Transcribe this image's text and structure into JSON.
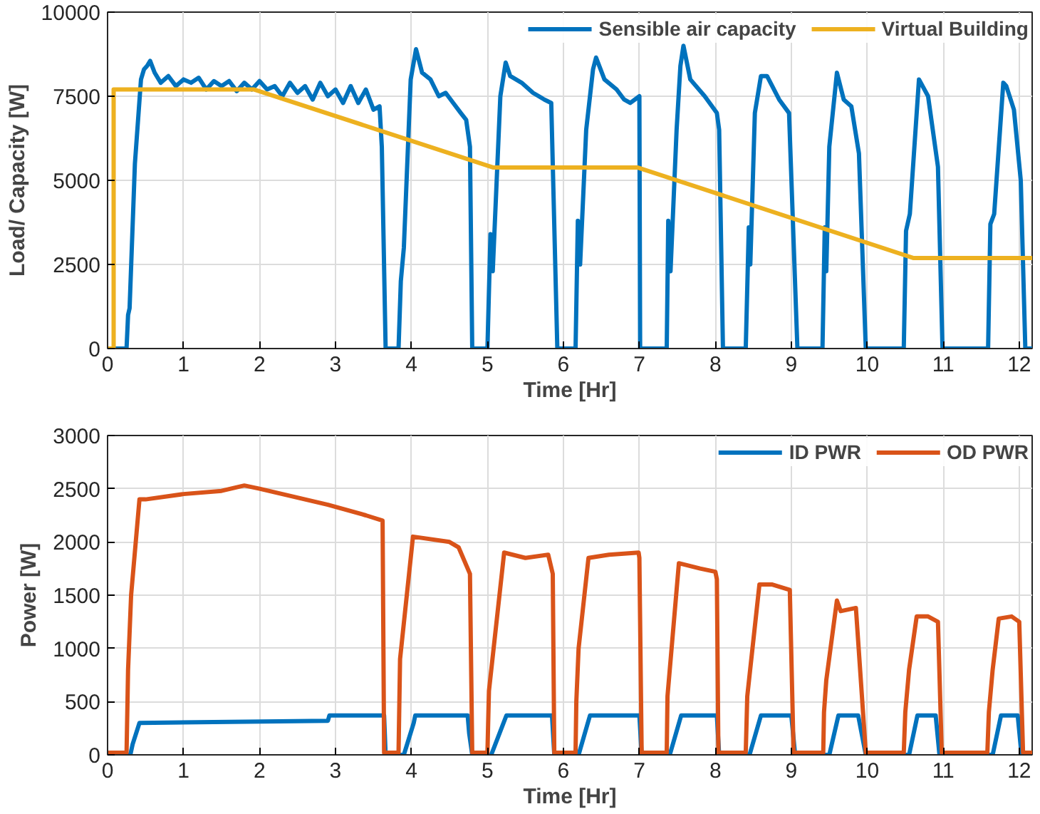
{
  "chart_data": [
    {
      "type": "line",
      "xlabel": "Time [Hr]",
      "ylabel": "Load/ Capacity [W]",
      "xlim": [
        0,
        12.17
      ],
      "ylim": [
        0,
        10000
      ],
      "xticks": [
        0,
        1,
        2,
        3,
        4,
        5,
        6,
        7,
        8,
        9,
        10,
        11,
        12
      ],
      "yticks": [
        0,
        2500,
        5000,
        7500,
        10000
      ],
      "grid": true,
      "legend": "top right",
      "line_style": "solid",
      "series": [
        {
          "name": "Sensible air capacity",
          "color": "#0072bd",
          "x": [
            0,
            0.25,
            0.27,
            0.29,
            0.36,
            0.44,
            0.48,
            0.52,
            0.56,
            0.62,
            0.7,
            0.8,
            0.9,
            1.0,
            1.1,
            1.2,
            1.3,
            1.4,
            1.5,
            1.6,
            1.7,
            1.8,
            1.9,
            2.0,
            2.1,
            2.2,
            2.3,
            2.4,
            2.5,
            2.6,
            2.7,
            2.8,
            2.9,
            3.0,
            3.1,
            3.2,
            3.3,
            3.4,
            3.5,
            3.58,
            3.61,
            3.66,
            3.83,
            3.86,
            3.9,
            3.99,
            4.06,
            4.14,
            4.25,
            4.36,
            4.45,
            4.55,
            4.65,
            4.72,
            4.77,
            4.8,
            5.0,
            5.04,
            5.07,
            5.17,
            5.24,
            5.3,
            5.45,
            5.6,
            5.75,
            5.84,
            5.92,
            6.16,
            6.19,
            6.22,
            6.3,
            6.39,
            6.43,
            6.54,
            6.7,
            6.8,
            6.88,
            7.0,
            7.01,
            7.07,
            7.36,
            7.38,
            7.41,
            7.49,
            7.54,
            7.58,
            7.67,
            7.86,
            8.02,
            8.05,
            8.1,
            8.4,
            8.44,
            8.46,
            8.52,
            8.6,
            8.68,
            8.84,
            8.97,
            9.08,
            9.41,
            9.44,
            9.46,
            9.5,
            9.6,
            9.69,
            9.79,
            9.89,
            9.98,
            10.48,
            10.51,
            10.56,
            10.68,
            10.8,
            10.93,
            10.99,
            11.59,
            11.62,
            11.67,
            11.79,
            11.83,
            11.93,
            12.02,
            12.08,
            12.17
          ],
          "values": [
            0,
            0,
            1000,
            1200,
            5500,
            8000,
            8300,
            8400,
            8550,
            8200,
            7900,
            8100,
            7800,
            8000,
            7900,
            8050,
            7700,
            7950,
            7800,
            7950,
            7650,
            7900,
            7700,
            7950,
            7700,
            7800,
            7500,
            7900,
            7600,
            7800,
            7400,
            7900,
            7500,
            7700,
            7300,
            7800,
            7300,
            7700,
            7100,
            7200,
            6000,
            0,
            0,
            2000,
            3000,
            8000,
            8900,
            8200,
            8000,
            7500,
            7600,
            7300,
            7000,
            6800,
            6000,
            0,
            0,
            3400,
            2300,
            7500,
            8500,
            8100,
            7900,
            7600,
            7400,
            7300,
            0,
            0,
            3800,
            2500,
            6500,
            8300,
            8650,
            8000,
            7700,
            7400,
            7300,
            7500,
            0,
            0,
            0,
            3800,
            2300,
            6500,
            8400,
            9000,
            8000,
            7500,
            7000,
            6500,
            0,
            0,
            3600,
            2500,
            7000,
            8100,
            8100,
            7400,
            7000,
            0,
            0,
            3600,
            2300,
            6000,
            8200,
            7400,
            7200,
            5800,
            0,
            0,
            3500,
            4000,
            8000,
            7500,
            5400,
            0,
            0,
            3700,
            4000,
            7900,
            7800,
            7100,
            5000,
            0,
            0
          ]
        },
        {
          "name": "Virtual Building",
          "color": "#edb120",
          "x": [
            0,
            0.08,
            0.08,
            1.93,
            5.08,
            6.98,
            10.61,
            12.17
          ],
          "values": [
            0,
            0,
            7700,
            7700,
            5380,
            5380,
            2690,
            2690
          ]
        }
      ]
    },
    {
      "type": "line",
      "xlabel": "Time [Hr]",
      "ylabel": "Power [W]",
      "xlim": [
        0,
        12.17
      ],
      "ylim": [
        0,
        3000
      ],
      "xticks": [
        0,
        1,
        2,
        3,
        4,
        5,
        6,
        7,
        8,
        9,
        10,
        11,
        12
      ],
      "yticks": [
        0,
        500,
        1000,
        1500,
        2000,
        2500,
        3000
      ],
      "grid": true,
      "legend": "top right",
      "line_style": "solid",
      "series": [
        {
          "name": "ID PWR",
          "color": "#0072bd",
          "x": [
            0,
            0.3,
            0.33,
            0.42,
            2.9,
            2.92,
            3.64,
            3.66,
            3.9,
            4.03,
            4.05,
            4.74,
            4.76,
            4.8,
            5.05,
            5.25,
            5.85,
            5.88,
            6.2,
            6.35,
            7.0,
            7.03,
            7.4,
            7.55,
            8.02,
            8.05,
            8.45,
            8.6,
            9.0,
            9.05,
            9.5,
            9.62,
            9.88,
            9.98,
            10.55,
            10.66,
            10.9,
            10.95,
            11.65,
            11.76,
            11.98,
            12.03,
            12.17
          ],
          "values": [
            0,
            0,
            100,
            300,
            320,
            370,
            370,
            0,
            0,
            300,
            370,
            370,
            200,
            0,
            0,
            370,
            370,
            0,
            0,
            370,
            370,
            0,
            0,
            370,
            370,
            0,
            0,
            370,
            370,
            0,
            0,
            370,
            370,
            0,
            0,
            370,
            370,
            0,
            0,
            370,
            370,
            0,
            0
          ]
        },
        {
          "name": "OD PWR",
          "color": "#d95319",
          "x": [
            0,
            0.25,
            0.27,
            0.31,
            0.42,
            0.5,
            1.0,
            1.5,
            1.8,
            2.0,
            2.3,
            2.9,
            3.4,
            3.62,
            3.64,
            3.83,
            3.85,
            4.02,
            4.5,
            4.62,
            4.74,
            4.77,
            4.8,
            5.0,
            5.02,
            5.22,
            5.5,
            5.8,
            5.86,
            5.88,
            6.16,
            6.17,
            6.2,
            6.33,
            6.6,
            6.99,
            7.0,
            7.03,
            7.36,
            7.37,
            7.52,
            7.8,
            8.0,
            8.02,
            8.04,
            8.4,
            8.42,
            8.58,
            8.75,
            8.98,
            9.03,
            9.42,
            9.43,
            9.46,
            9.6,
            9.65,
            9.85,
            9.98,
            10.48,
            10.5,
            10.55,
            10.65,
            10.8,
            10.93,
            10.98,
            11.58,
            11.6,
            11.65,
            11.73,
            11.9,
            12.0,
            12.05,
            12.17
          ],
          "values": [
            20,
            20,
            800,
            1500,
            2400,
            2400,
            2450,
            2480,
            2530,
            2500,
            2450,
            2350,
            2250,
            2200,
            20,
            20,
            900,
            2050,
            2000,
            1950,
            1750,
            1700,
            20,
            20,
            600,
            1900,
            1850,
            1880,
            1700,
            20,
            20,
            500,
            1000,
            1850,
            1880,
            1900,
            1850,
            20,
            20,
            550,
            1800,
            1750,
            1720,
            1650,
            20,
            20,
            550,
            1600,
            1600,
            1550,
            20,
            20,
            400,
            700,
            1450,
            1350,
            1380,
            20,
            20,
            400,
            800,
            1300,
            1300,
            1250,
            20,
            20,
            400,
            800,
            1280,
            1300,
            1250,
            20,
            20
          ]
        }
      ]
    }
  ]
}
